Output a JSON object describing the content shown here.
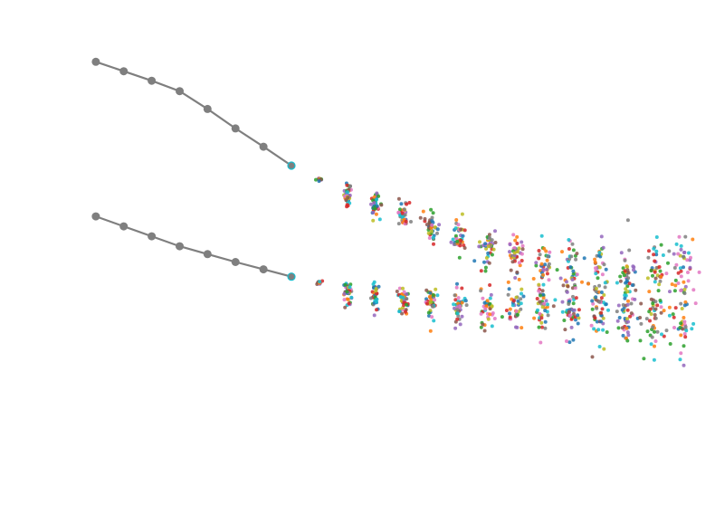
{
  "chart_data": {
    "type": "scatter",
    "description_visible_text": "",
    "xlim": [
      0,
      23
    ],
    "ylim": [
      0,
      1
    ],
    "grid": false,
    "legend": "none",
    "colors": {
      "history": "#7f7f7f",
      "palette": [
        "#1f77b4",
        "#ff7f0e",
        "#2ca02c",
        "#d62728",
        "#9467bd",
        "#8c564b",
        "#e377c2",
        "#7f7f7f",
        "#bcbd22",
        "#17becf"
      ]
    },
    "series": [
      {
        "history_x": [
          1,
          2,
          3,
          4,
          5,
          6,
          7,
          8
        ],
        "history_y": [
          0.882,
          0.864,
          0.846,
          0.826,
          0.792,
          0.755,
          0.72,
          0.684
        ],
        "forecast_x": [
          9,
          10,
          11,
          12,
          13,
          14,
          15,
          16,
          17,
          18,
          19,
          20,
          21,
          22
        ],
        "forecast_center": [
          0.658,
          0.63,
          0.608,
          0.59,
          0.568,
          0.547,
          0.53,
          0.51,
          0.495,
          0.483,
          0.477,
          0.479,
          0.483,
          0.49
        ],
        "forecast_spread": [
          0.002,
          0.01,
          0.012,
          0.012,
          0.014,
          0.016,
          0.018,
          0.022,
          0.026,
          0.028,
          0.03,
          0.032,
          0.033,
          0.034
        ]
      },
      {
        "history_x": [
          1,
          2,
          3,
          4,
          5,
          6,
          7,
          8
        ],
        "history_y": [
          0.587,
          0.568,
          0.549,
          0.53,
          0.515,
          0.5,
          0.486,
          0.472
        ],
        "forecast_x": [
          9,
          10,
          11,
          12,
          13,
          14,
          15,
          16,
          17,
          18,
          19,
          20,
          21,
          22
        ],
        "forecast_center": [
          0.46,
          0.447,
          0.435,
          0.427,
          0.42,
          0.417,
          0.413,
          0.412,
          0.409,
          0.404,
          0.401,
          0.396,
          0.392,
          0.39
        ],
        "forecast_spread": [
          0.002,
          0.01,
          0.013,
          0.014,
          0.016,
          0.018,
          0.02,
          0.022,
          0.024,
          0.026,
          0.028,
          0.03,
          0.032,
          0.034
        ]
      }
    ],
    "samples_per_step": 40
  }
}
